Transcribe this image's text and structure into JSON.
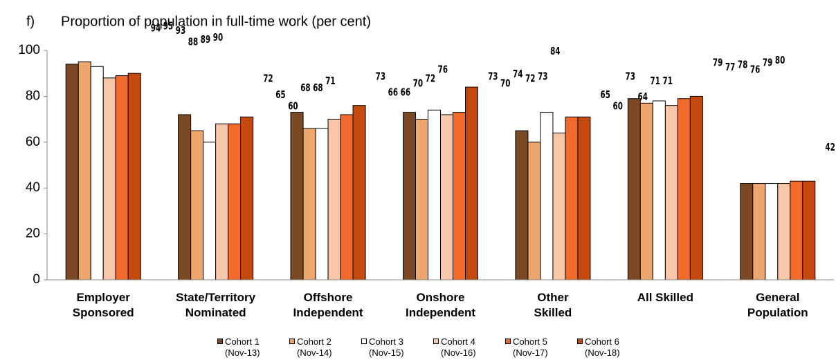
{
  "chart_data": {
    "type": "bar",
    "panel_label": "f)",
    "title": "Proportion of population in full-time work (per cent)",
    "categories": [
      "Employer\nSponsored",
      "State/Territory\nNominated",
      "Offshore\nIndependent",
      "Onshore\nIndependent",
      "Other\nSkilled",
      "All Skilled",
      "General\nPopulation"
    ],
    "series": [
      {
        "name": "Cohort 1\n(Nov-13)",
        "color": "#7b4a24",
        "values": [
          94,
          72,
          73,
          73,
          65,
          79,
          42
        ]
      },
      {
        "name": "Cohort 2\n(Nov-14)",
        "color": "#eda66b",
        "values": [
          95,
          65,
          66,
          70,
          60,
          77,
          42
        ]
      },
      {
        "name": "Cohort 3\n(Nov-15)",
        "color": "#ffffff",
        "values": [
          93,
          60,
          66,
          74,
          73,
          78,
          42
        ]
      },
      {
        "name": "Cohort 4\n(Nov-16)",
        "color": "#f8c6a8",
        "values": [
          88,
          68,
          70,
          72,
          64,
          76,
          42
        ]
      },
      {
        "name": "Cohort 5\n(Nov-17)",
        "color": "#f26b2a",
        "values": [
          89,
          68,
          72,
          73,
          71,
          79,
          43
        ]
      },
      {
        "name": "Cohort 6\n(Nov-18)",
        "color": "#c44a0e",
        "values": [
          90,
          71,
          76,
          84,
          71,
          80,
          43
        ]
      }
    ],
    "ylim": [
      0,
      100
    ],
    "yticks": [
      0,
      20,
      40,
      60,
      80,
      100
    ],
    "grid": false
  }
}
